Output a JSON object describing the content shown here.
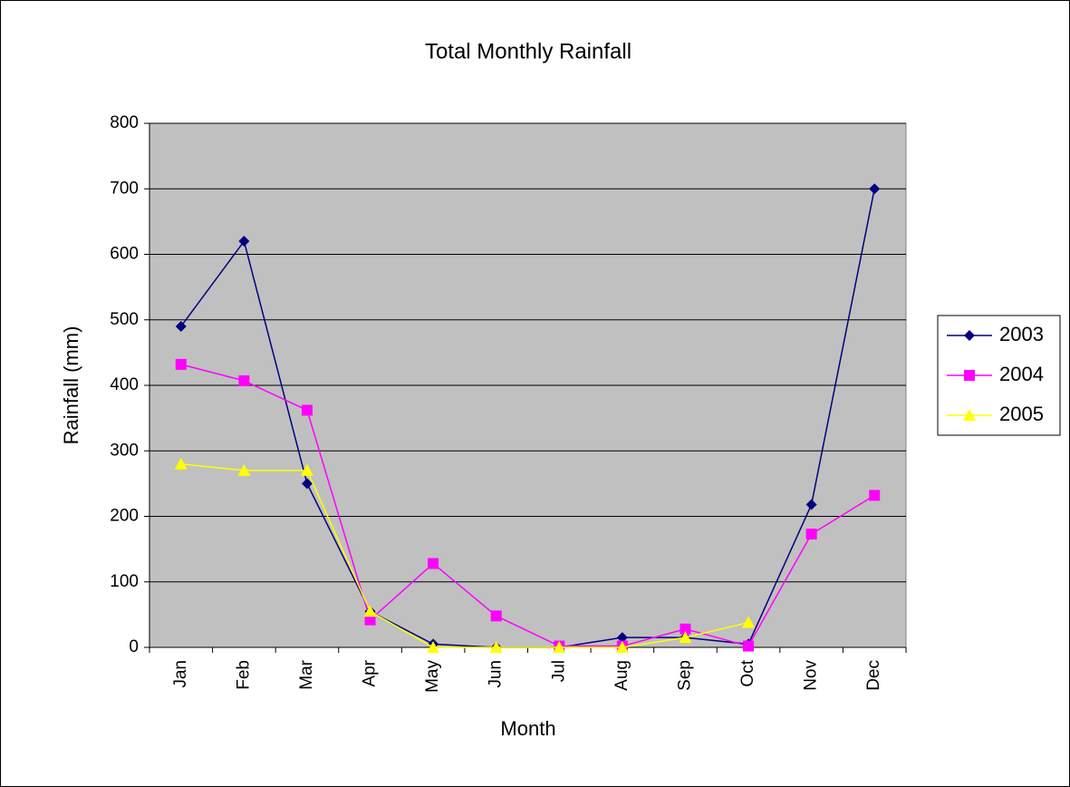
{
  "chart_data": {
    "type": "line",
    "title": "Total Monthly Rainfall",
    "x_label": "Month",
    "y_label": "Rainfall (mm)",
    "categories": [
      "Jan",
      "Feb",
      "Mar",
      "Apr",
      "May",
      "Jun",
      "Jul",
      "Aug",
      "Sep",
      "Oct",
      "Nov",
      "Dec"
    ],
    "series": [
      {
        "name": "2003",
        "color": "#000080",
        "marker": "diamond",
        "values": [
          490,
          620,
          250,
          55,
          5,
          0,
          0,
          15,
          15,
          5,
          218,
          700
        ]
      },
      {
        "name": "2004",
        "color": "#ff00ff",
        "marker": "square",
        "values": [
          432,
          407,
          362,
          42,
          128,
          48,
          2,
          2,
          28,
          2,
          173,
          232
        ]
      },
      {
        "name": "2005",
        "color": "#ffff00",
        "marker": "triangle",
        "values": [
          280,
          270,
          270,
          55,
          0,
          0,
          0,
          0,
          15,
          38,
          null,
          null
        ]
      }
    ],
    "ylim": [
      0,
      800
    ],
    "yticks": [
      0,
      100,
      200,
      300,
      400,
      500,
      600,
      700,
      800
    ],
    "grid": true,
    "plot_background": "#c0c0c0",
    "legend": "right"
  }
}
